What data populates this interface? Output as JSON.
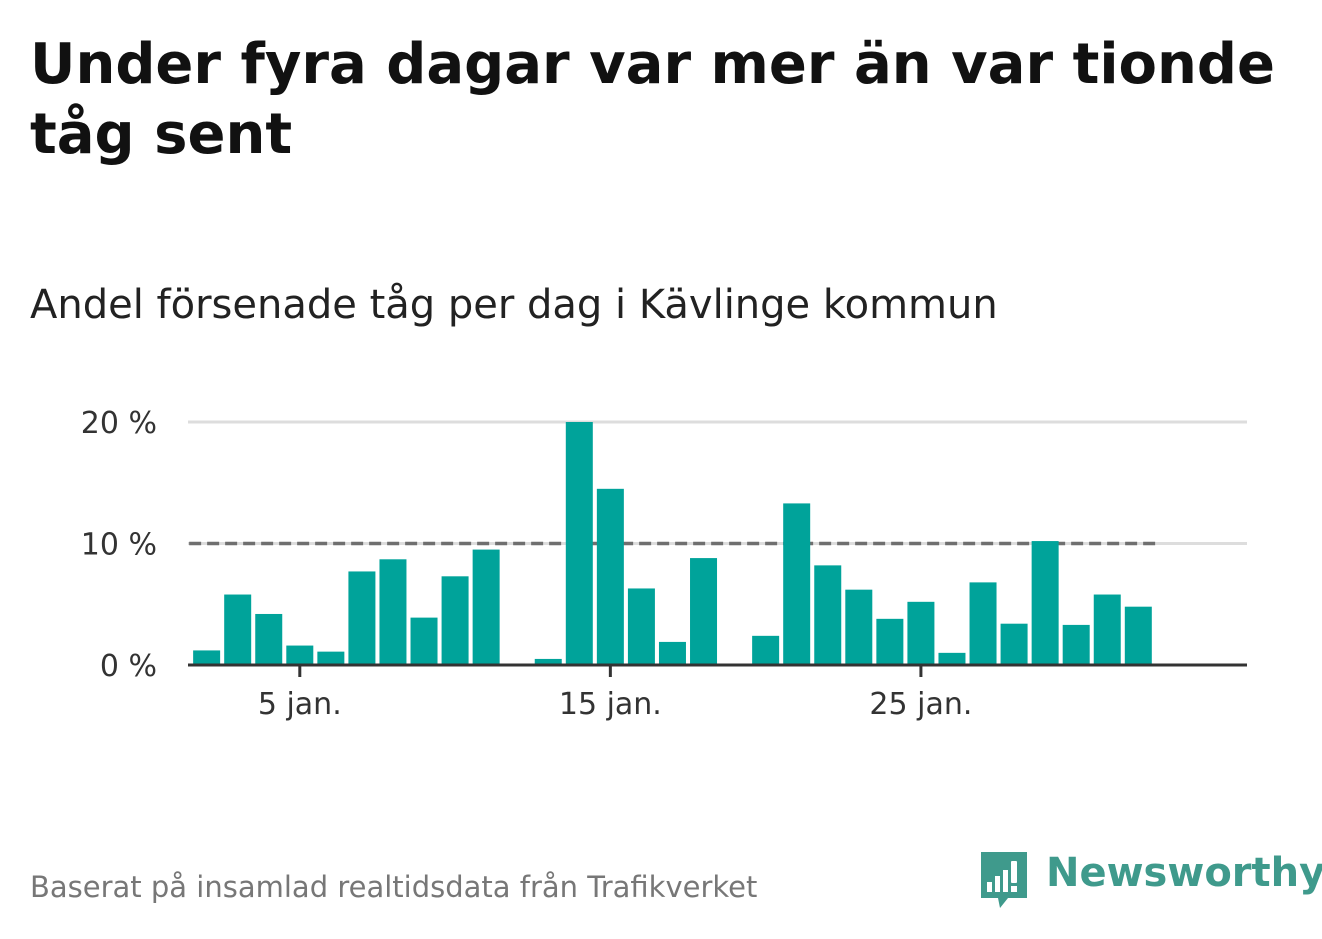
{
  "header": {
    "title": "Under fyra dagar var mer än var tionde tåg sent",
    "subtitle": "Andel försenade tåg per dag i Kävlinge kommun"
  },
  "footer": {
    "source": "Baserat på insamlad realtidsdata från Trafikverket"
  },
  "brand": {
    "name": "Newsworthy",
    "icon": "newsworthy-logo-icon"
  },
  "colors": {
    "bar": "#00a39a",
    "reference_line": "#6f6f6f",
    "grid": "#dddddd",
    "axis": "#333333",
    "brand": "#3f9a8c"
  },
  "chart_data": {
    "type": "bar",
    "title": "Andel försenade tåg per dag i Kävlinge kommun",
    "xlabel": "",
    "ylabel": "",
    "x_unit": "day of January",
    "x": [
      2,
      3,
      4,
      5,
      6,
      7,
      8,
      9,
      10,
      11,
      12,
      13,
      14,
      15,
      16,
      17,
      18,
      19,
      20,
      21,
      22,
      23,
      24,
      25,
      26,
      27,
      28,
      29,
      30,
      31,
      32
    ],
    "values": [
      1.2,
      5.8,
      4.2,
      1.6,
      1.1,
      7.7,
      8.7,
      3.9,
      7.3,
      9.5,
      0,
      0.5,
      20.0,
      14.5,
      6.3,
      1.9,
      8.8,
      0,
      2.4,
      13.3,
      8.2,
      6.2,
      3.8,
      5.2,
      1.0,
      6.8,
      3.4,
      10.2,
      3.3,
      5.8,
      4.8
    ],
    "ylim": [
      0,
      20
    ],
    "yticks": [
      0,
      10,
      20
    ],
    "ytick_labels": [
      "0 %",
      "10 %",
      "20 %"
    ],
    "xticks": [
      5,
      15,
      25
    ],
    "xtick_labels": [
      "5 jan.",
      "15 jan.",
      "25 jan."
    ],
    "reference_line": {
      "value": 10,
      "style": "dashed"
    },
    "grid": true,
    "legend": "none"
  }
}
